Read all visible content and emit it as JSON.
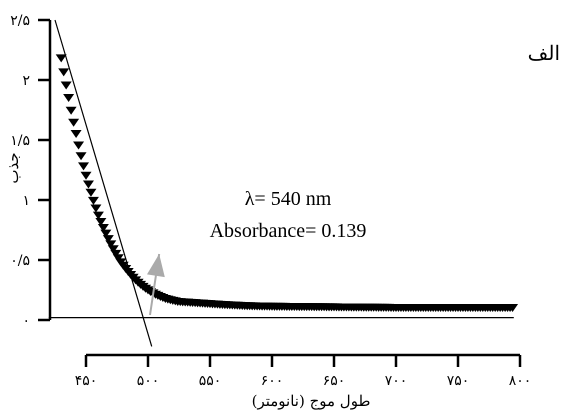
{
  "chart_data": {
    "type": "scatter",
    "panel_label": "الف",
    "xlabel": "طول موج (نانومتر)",
    "ylabel": "جذب",
    "xlim": [
      450,
      800
    ],
    "ylim": [
      0,
      2.5
    ],
    "x_ticks": [
      {
        "value": 450,
        "label": "۴۵۰"
      },
      {
        "value": 500,
        "label": "۵۰۰"
      },
      {
        "value": 550,
        "label": "۵۵۰"
      },
      {
        "value": 600,
        "label": "۶۰۰"
      },
      {
        "value": 650,
        "label": "۶۵۰"
      },
      {
        "value": 700,
        "label": "۷۰۰"
      },
      {
        "value": 750,
        "label": "۷۵۰"
      },
      {
        "value": 800,
        "label": "۸۰۰"
      }
    ],
    "y_ticks": [
      {
        "value": 0,
        "label": "۰"
      },
      {
        "value": 0.5,
        "label": "۰/۵"
      },
      {
        "value": 1,
        "label": "۱"
      },
      {
        "value": 1.5,
        "label": "۱/۵"
      },
      {
        "value": 2,
        "label": "۲"
      },
      {
        "value": 2.5,
        "label": "۲/۵"
      }
    ],
    "series": [
      {
        "marker": "triangle-down",
        "color": "#000000",
        "x_start": 430,
        "x_end": 795,
        "x_step": 2,
        "points": [
          {
            "x": 430,
            "y": 2.18
          },
          {
            "x": 436,
            "y": 1.85
          },
          {
            "x": 442,
            "y": 1.55
          },
          {
            "x": 448,
            "y": 1.28
          },
          {
            "x": 454,
            "y": 1.06
          },
          {
            "x": 460,
            "y": 0.87
          },
          {
            "x": 466,
            "y": 0.72
          },
          {
            "x": 472,
            "y": 0.59
          },
          {
            "x": 478,
            "y": 0.48
          },
          {
            "x": 484,
            "y": 0.4
          },
          {
            "x": 490,
            "y": 0.33
          },
          {
            "x": 498,
            "y": 0.26
          },
          {
            "x": 506,
            "y": 0.21
          },
          {
            "x": 514,
            "y": 0.175
          },
          {
            "x": 524,
            "y": 0.15
          },
          {
            "x": 540,
            "y": 0.139
          },
          {
            "x": 560,
            "y": 0.125
          },
          {
            "x": 580,
            "y": 0.115
          },
          {
            "x": 600,
            "y": 0.11
          },
          {
            "x": 650,
            "y": 0.105
          },
          {
            "x": 700,
            "y": 0.1
          },
          {
            "x": 750,
            "y": 0.1
          },
          {
            "x": 795,
            "y": 0.1
          }
        ]
      }
    ],
    "annotation": {
      "line1": "λ= 540 nm",
      "line2": "Absorbance= 0.139",
      "arrow_color": "#aaaaaa",
      "arrow_target": {
        "x": 509,
        "y": 0.55
      }
    },
    "tangent_line": {
      "x1": 425,
      "y1": 2.5,
      "x2": 503,
      "y2": -0.22
    },
    "baseline": {
      "x1": 420,
      "y1": 0.02,
      "x2": 795,
      "y2": 0.02
    }
  }
}
